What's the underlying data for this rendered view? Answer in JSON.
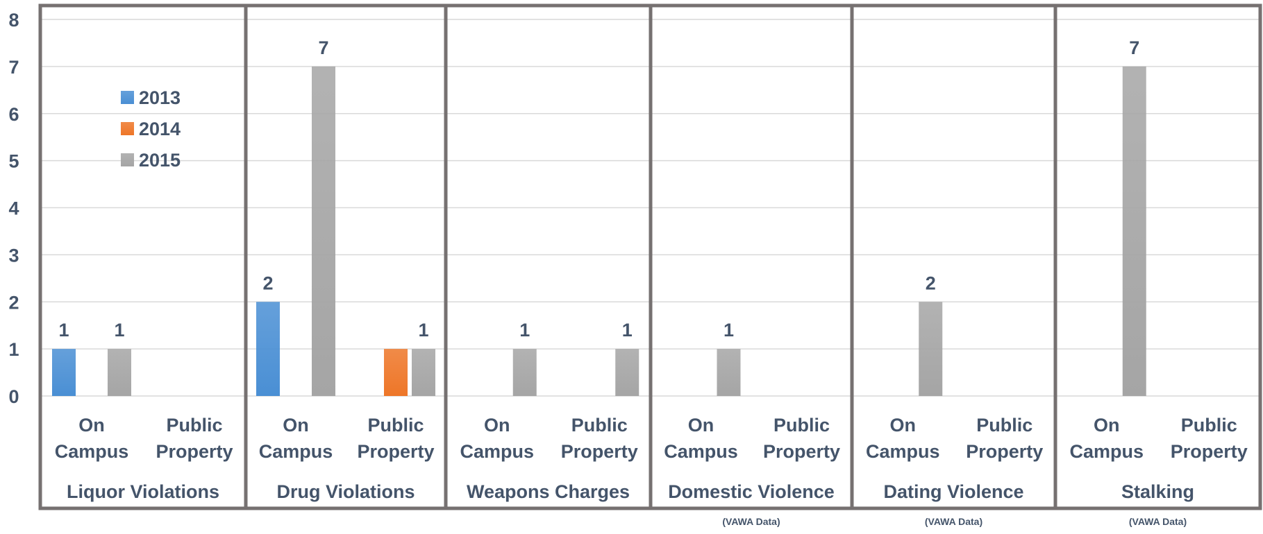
{
  "chart_data": {
    "type": "bar",
    "ylim": [
      0,
      8
    ],
    "y_ticks": [
      "0",
      "1",
      "2",
      "3",
      "4",
      "5",
      "6",
      "7",
      "8"
    ],
    "grid": true,
    "legend_position": "top-left",
    "categories": [
      "On Campus",
      "Public Property"
    ],
    "category_lines": [
      [
        "On",
        "Campus"
      ],
      [
        "Public",
        "Property"
      ]
    ],
    "colors": {
      "2013": "#4a8fd4",
      "2014": "#ee7628",
      "2015": "#a5a5a5"
    },
    "series_names": [
      "2013",
      "2014",
      "2015"
    ],
    "groups": [
      {
        "name": "Liquor Violations",
        "note": "",
        "values": [
          [
            1,
            0,
            1
          ],
          [
            0,
            0,
            0
          ]
        ]
      },
      {
        "name": "Drug Violations",
        "note": "",
        "values": [
          [
            2,
            0,
            7
          ],
          [
            0,
            1,
            1
          ]
        ]
      },
      {
        "name": "Weapons Charges",
        "note": "",
        "values": [
          [
            0,
            0,
            1
          ],
          [
            0,
            0,
            1
          ]
        ]
      },
      {
        "name": "Domestic Violence",
        "note": "(VAWA Data)",
        "values": [
          [
            0,
            0,
            1
          ],
          [
            0,
            0,
            0
          ]
        ]
      },
      {
        "name": "Dating Violence",
        "note": "(VAWA Data)",
        "values": [
          [
            0,
            0,
            2
          ],
          [
            0,
            0,
            0
          ]
        ]
      },
      {
        "name": "Stalking",
        "note": "(VAWA Data)",
        "values": [
          [
            0,
            0,
            7
          ],
          [
            0,
            0,
            0
          ]
        ]
      }
    ],
    "data_labels": [
      {
        "group": 0,
        "category": 0,
        "series": 0,
        "text": "1"
      },
      {
        "group": 0,
        "category": 0,
        "series": 2,
        "text": "1"
      },
      {
        "group": 1,
        "category": 0,
        "series": 0,
        "text": "2"
      },
      {
        "group": 1,
        "category": 0,
        "series": 2,
        "text": "7"
      },
      {
        "group": 1,
        "category": 1,
        "series": 2,
        "text": "1"
      },
      {
        "group": 2,
        "category": 0,
        "series": 2,
        "text": "1"
      },
      {
        "group": 2,
        "category": 1,
        "series": 2,
        "text": "1"
      },
      {
        "group": 3,
        "category": 0,
        "series": 2,
        "text": "1"
      },
      {
        "group": 4,
        "category": 0,
        "series": 2,
        "text": "2"
      },
      {
        "group": 5,
        "category": 0,
        "series": 2,
        "text": "7"
      }
    ]
  }
}
